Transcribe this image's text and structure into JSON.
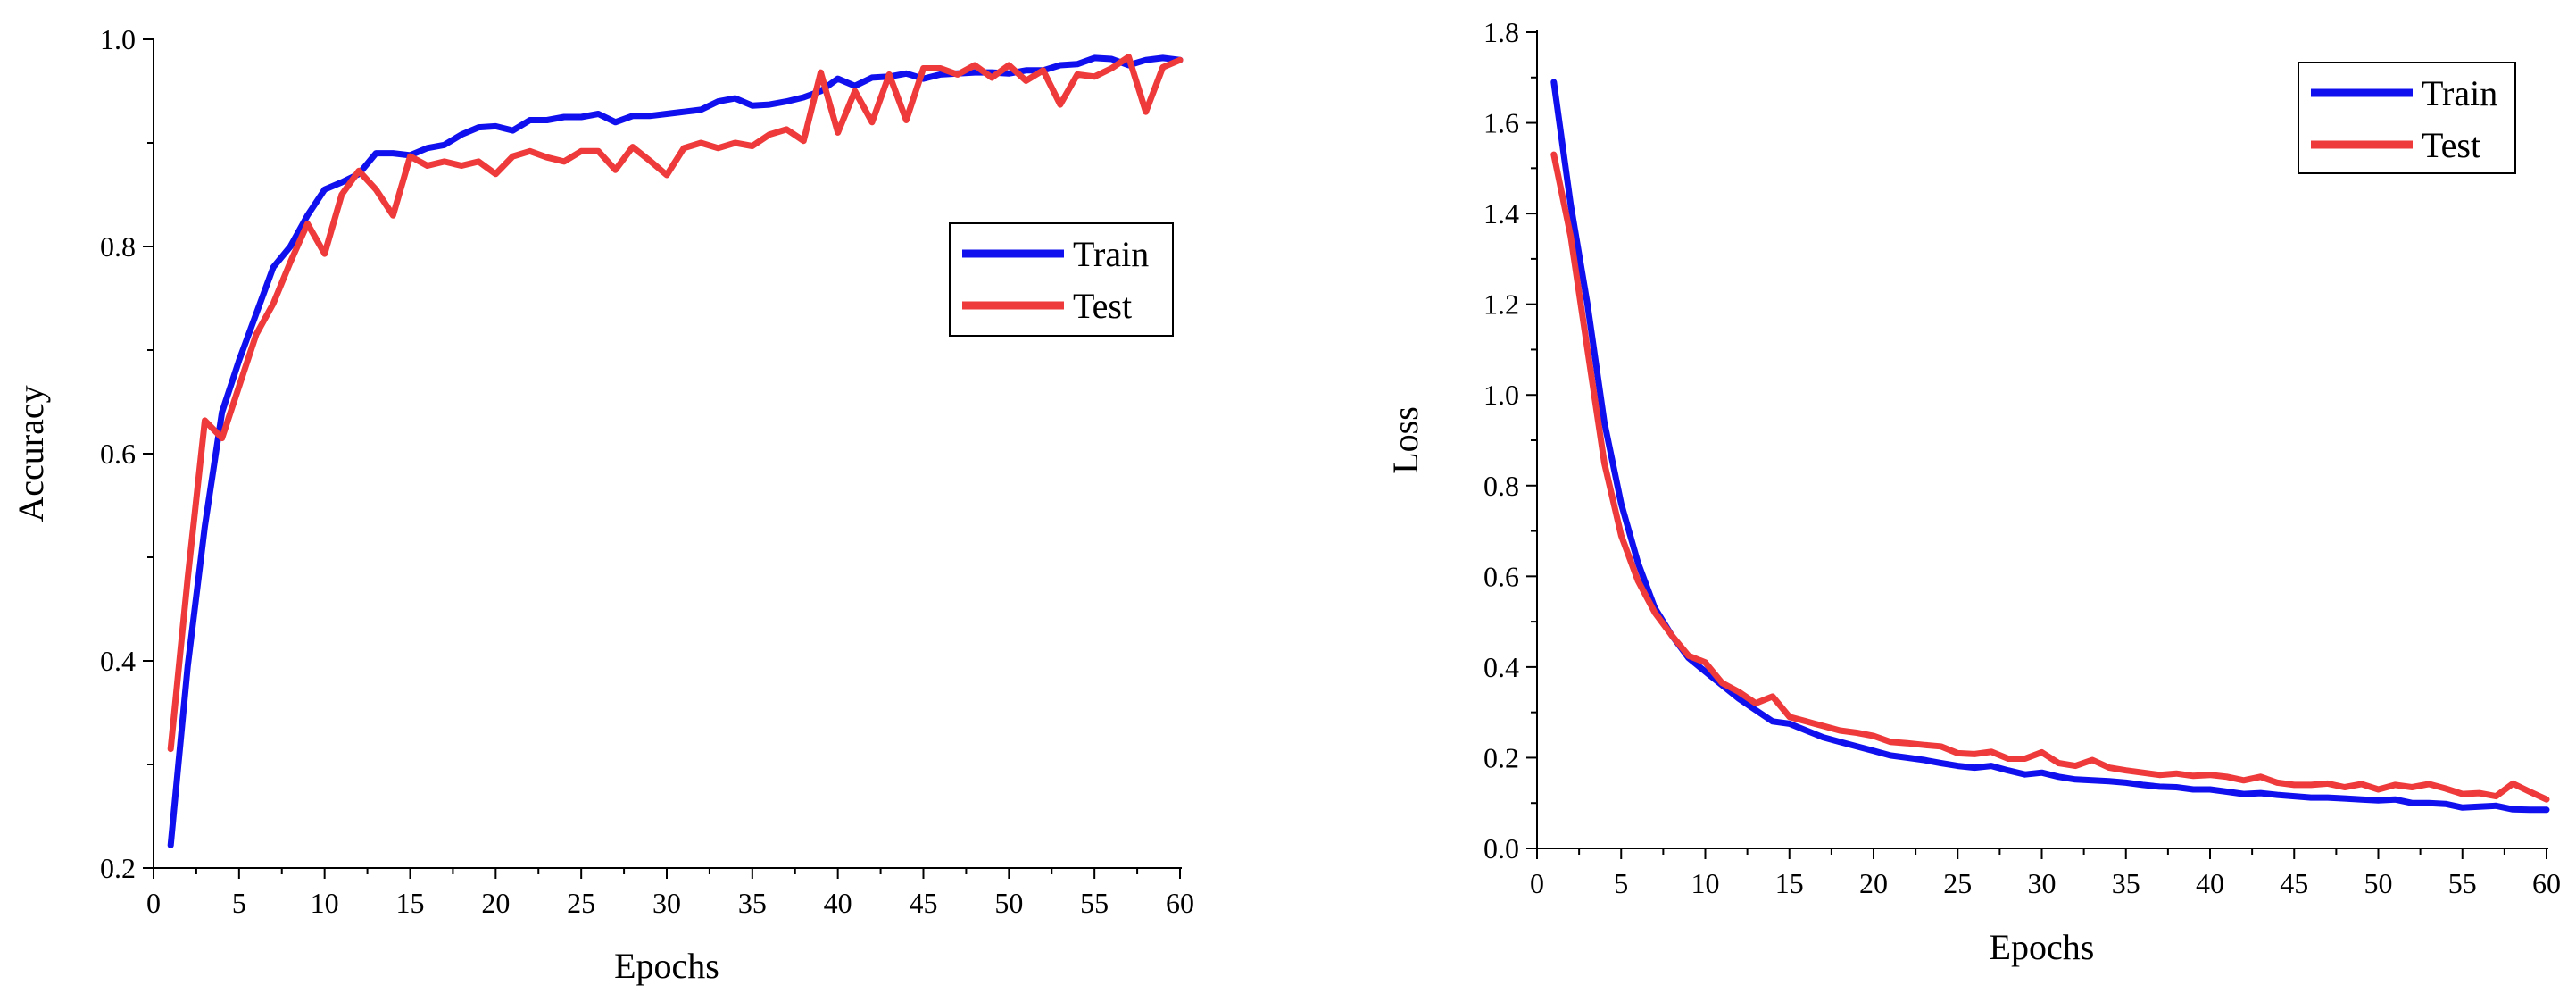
{
  "chart_data": [
    {
      "id": "accuracy",
      "type": "line",
      "title": "",
      "xlabel": "Epochs",
      "ylabel": "Accuracy",
      "xlim": [
        0,
        60
      ],
      "ylim": [
        0.2,
        1.0
      ],
      "xticks": [
        0,
        5,
        10,
        15,
        20,
        25,
        30,
        35,
        40,
        45,
        50,
        55,
        60
      ],
      "yticks": [
        0.2,
        0.4,
        0.6,
        0.8,
        1.0
      ],
      "xtick_labels": [
        "0",
        "5",
        "10",
        "15",
        "20",
        "25",
        "30",
        "35",
        "40",
        "45",
        "50",
        "55",
        "60"
      ],
      "ytick_labels": [
        "0.2",
        "0.4",
        "0.6",
        "0.8",
        "1.0"
      ],
      "legend_position": "center-right",
      "grid": false,
      "series": [
        {
          "name": "Train",
          "color": "#1010ee",
          "x": [
            1,
            2,
            3,
            4,
            5,
            6,
            7,
            8,
            9,
            10,
            11,
            12,
            13,
            14,
            15,
            16,
            17,
            18,
            19,
            20,
            21,
            22,
            23,
            24,
            25,
            26,
            27,
            28,
            29,
            30,
            31,
            32,
            33,
            34,
            35,
            36,
            37,
            38,
            39,
            40,
            41,
            42,
            43,
            44,
            45,
            46,
            47,
            48,
            49,
            50,
            51,
            52,
            53,
            54,
            55,
            56,
            57,
            58,
            59,
            60
          ],
          "values": [
            0.222,
            0.395,
            0.53,
            0.64,
            0.69,
            0.735,
            0.78,
            0.8,
            0.83,
            0.855,
            0.862,
            0.87,
            0.89,
            0.89,
            0.888,
            0.895,
            0.898,
            0.908,
            0.915,
            0.916,
            0.912,
            0.922,
            0.922,
            0.925,
            0.925,
            0.928,
            0.92,
            0.926,
            0.926,
            0.928,
            0.93,
            0.932,
            0.94,
            0.943,
            0.936,
            0.937,
            0.94,
            0.944,
            0.95,
            0.962,
            0.955,
            0.963,
            0.964,
            0.967,
            0.962,
            0.966,
            0.967,
            0.968,
            0.968,
            0.967,
            0.97,
            0.97,
            0.975,
            0.976,
            0.982,
            0.981,
            0.975,
            0.98,
            0.982,
            0.98
          ]
        },
        {
          "name": "Test",
          "color": "#ee3a3a",
          "x": [
            1,
            2,
            3,
            4,
            5,
            6,
            7,
            8,
            9,
            10,
            11,
            12,
            13,
            14,
            15,
            16,
            17,
            18,
            19,
            20,
            21,
            22,
            23,
            24,
            25,
            26,
            27,
            28,
            29,
            30,
            31,
            32,
            33,
            34,
            35,
            36,
            37,
            38,
            39,
            40,
            41,
            42,
            43,
            44,
            45,
            46,
            47,
            48,
            49,
            50,
            51,
            52,
            53,
            54,
            55,
            56,
            57,
            58,
            59,
            60
          ],
          "values": [
            0.315,
            0.48,
            0.632,
            0.615,
            0.665,
            0.715,
            0.745,
            0.785,
            0.822,
            0.793,
            0.85,
            0.873,
            0.855,
            0.83,
            0.887,
            0.878,
            0.882,
            0.878,
            0.882,
            0.87,
            0.887,
            0.892,
            0.886,
            0.882,
            0.892,
            0.892,
            0.874,
            0.896,
            0.883,
            0.869,
            0.895,
            0.9,
            0.895,
            0.9,
            0.897,
            0.908,
            0.913,
            0.902,
            0.968,
            0.91,
            0.95,
            0.92,
            0.966,
            0.922,
            0.972,
            0.972,
            0.966,
            0.975,
            0.963,
            0.975,
            0.96,
            0.97,
            0.937,
            0.966,
            0.964,
            0.972,
            0.983,
            0.93,
            0.973,
            0.98
          ]
        }
      ]
    },
    {
      "id": "loss",
      "type": "line",
      "title": "",
      "xlabel": "Epochs",
      "ylabel": "Loss",
      "xlim": [
        0,
        60
      ],
      "ylim": [
        0.0,
        1.8
      ],
      "xticks": [
        0,
        5,
        10,
        15,
        20,
        25,
        30,
        35,
        40,
        45,
        50,
        55,
        60
      ],
      "yticks": [
        0.0,
        0.2,
        0.4,
        0.6,
        0.8,
        1.0,
        1.2,
        1.4,
        1.6,
        1.8
      ],
      "xtick_labels": [
        "0",
        "5",
        "10",
        "15",
        "20",
        "25",
        "30",
        "35",
        "40",
        "45",
        "50",
        "55",
        "60"
      ],
      "ytick_labels": [
        "0.0",
        "0.2",
        "0.4",
        "0.6",
        "0.8",
        "1.0",
        "1.2",
        "1.4",
        "1.6",
        "1.8"
      ],
      "legend_position": "top-right",
      "grid": false,
      "series": [
        {
          "name": "Train",
          "color": "#1010ee",
          "x": [
            1,
            2,
            3,
            4,
            5,
            6,
            7,
            8,
            9,
            10,
            11,
            12,
            13,
            14,
            15,
            16,
            17,
            18,
            19,
            20,
            21,
            22,
            23,
            24,
            25,
            26,
            27,
            28,
            29,
            30,
            31,
            32,
            33,
            34,
            35,
            36,
            37,
            38,
            39,
            40,
            41,
            42,
            43,
            44,
            45,
            46,
            47,
            48,
            49,
            50,
            51,
            52,
            53,
            54,
            55,
            56,
            57,
            58,
            59,
            60
          ],
          "values": [
            1.69,
            1.42,
            1.2,
            0.94,
            0.76,
            0.63,
            0.53,
            0.47,
            0.42,
            0.39,
            0.36,
            0.33,
            0.305,
            0.28,
            0.275,
            0.26,
            0.245,
            0.235,
            0.225,
            0.215,
            0.205,
            0.2,
            0.195,
            0.188,
            0.182,
            0.178,
            0.182,
            0.172,
            0.163,
            0.167,
            0.158,
            0.152,
            0.15,
            0.148,
            0.145,
            0.14,
            0.136,
            0.135,
            0.13,
            0.13,
            0.125,
            0.12,
            0.122,
            0.118,
            0.115,
            0.112,
            0.112,
            0.11,
            0.108,
            0.106,
            0.108,
            0.1,
            0.1,
            0.098,
            0.09,
            0.092,
            0.094,
            0.086,
            0.085,
            0.085
          ]
        },
        {
          "name": "Test",
          "color": "#ee3a3a",
          "x": [
            1,
            2,
            3,
            4,
            5,
            6,
            7,
            8,
            9,
            10,
            11,
            12,
            13,
            14,
            15,
            16,
            17,
            18,
            19,
            20,
            21,
            22,
            23,
            24,
            25,
            26,
            27,
            28,
            29,
            30,
            31,
            32,
            33,
            34,
            35,
            36,
            37,
            38,
            39,
            40,
            41,
            42,
            43,
            44,
            45,
            46,
            47,
            48,
            49,
            50,
            51,
            52,
            53,
            54,
            55,
            56,
            57,
            58,
            59,
            60
          ],
          "values": [
            1.53,
            1.35,
            1.1,
            0.85,
            0.69,
            0.59,
            0.52,
            0.47,
            0.425,
            0.41,
            0.365,
            0.345,
            0.32,
            0.335,
            0.29,
            0.28,
            0.27,
            0.26,
            0.255,
            0.248,
            0.235,
            0.232,
            0.228,
            0.225,
            0.21,
            0.208,
            0.213,
            0.198,
            0.198,
            0.212,
            0.188,
            0.182,
            0.195,
            0.178,
            0.172,
            0.167,
            0.162,
            0.165,
            0.16,
            0.162,
            0.158,
            0.15,
            0.158,
            0.145,
            0.14,
            0.14,
            0.143,
            0.135,
            0.142,
            0.13,
            0.14,
            0.135,
            0.142,
            0.132,
            0.12,
            0.122,
            0.115,
            0.143,
            0.125,
            0.108
          ]
        }
      ]
    }
  ]
}
